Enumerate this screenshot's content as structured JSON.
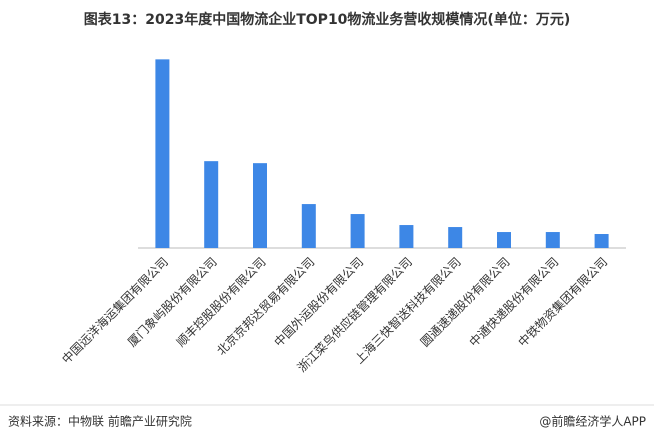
{
  "chart_data": {
    "type": "bar",
    "title": "图表13：2023年度中国物流企业TOP10物流业务营收规模情况(单位：万元)",
    "categories": [
      "中国远洋海运集团有限公司",
      "厦门象屿股份有限公司",
      "顺丰控股股份有限公司",
      "北京京邦达贸易有限公司",
      "中国外运股份有限公司",
      "浙江菜鸟供应链管理有限公司",
      "上海三快智送科技有限公司",
      "圆通速递股份有限公司",
      "中通快递股份有限公司",
      "中铁物资集团有限公司"
    ],
    "values": [
      57456000,
      26450000,
      25840000,
      13380000,
      10340000,
      6990000,
      6380000,
      4860000,
      4860000,
      4260000
    ],
    "color": "#3d87e6",
    "ylim": [
      0,
      60000000
    ]
  },
  "footer": {
    "source": "资料来源：中物联 前瞻产业研究院",
    "brand": "@前瞻经济学人APP"
  }
}
